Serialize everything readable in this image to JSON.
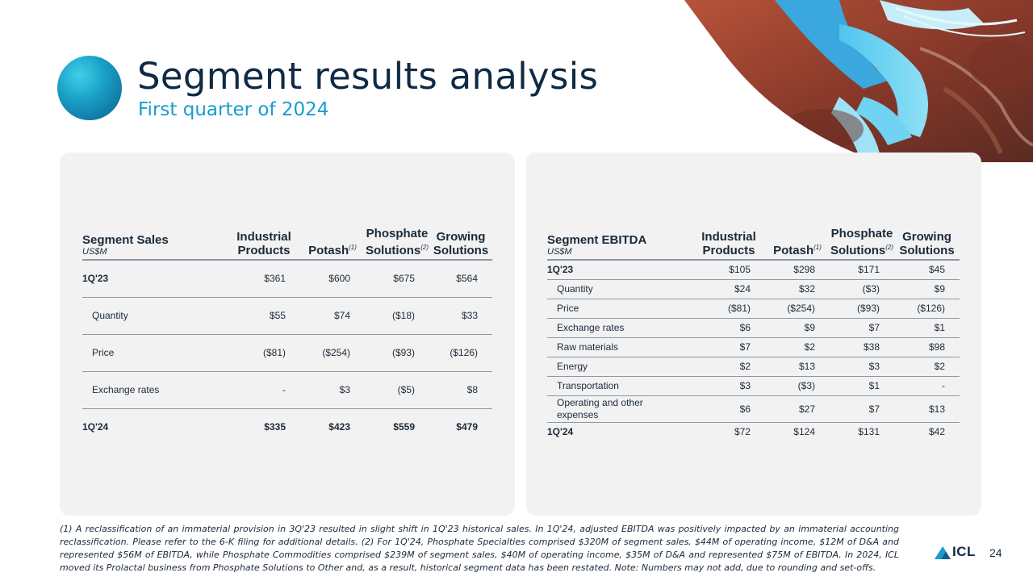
{
  "header": {
    "title": "Segment results analysis",
    "subtitle": "First quarter of 2024"
  },
  "sales_table": {
    "title": "Segment Sales",
    "unit": "US$M",
    "col1": "Industrial Products",
    "col2": "Potash",
    "col2_note": "(1)",
    "col3": "Phosphate Solutions",
    "col3_note": "(2)",
    "col4": "Growing Solutions",
    "rows": [
      {
        "label": "1Q'23",
        "v": [
          "$361",
          "$600",
          "$675",
          "$564"
        ]
      },
      {
        "label": "Quantity",
        "v": [
          "$55",
          "$74",
          "($18)",
          "$33"
        ]
      },
      {
        "label": "Price",
        "v": [
          "($81)",
          "($254)",
          "($93)",
          "($126)"
        ]
      },
      {
        "label": "Exchange rates",
        "v": [
          "-",
          "$3",
          "($5)",
          "$8"
        ]
      },
      {
        "label": "1Q'24",
        "v": [
          "$335",
          "$423",
          "$559",
          "$479"
        ]
      }
    ]
  },
  "ebitda_table": {
    "title": "Segment EBITDA",
    "unit": "US$M",
    "col1": "Industrial Products",
    "col2": "Potash",
    "col2_note": "(1)",
    "col3": "Phosphate Solutions",
    "col3_note": "(2)",
    "col4": "Growing Solutions",
    "rows": [
      {
        "label": "1Q'23",
        "v": [
          "$105",
          "$298",
          "$171",
          "$45"
        ]
      },
      {
        "label": "Quantity",
        "v": [
          "$24",
          "$32",
          "($3)",
          "$9"
        ]
      },
      {
        "label": "Price",
        "v": [
          "($81)",
          "($254)",
          "($93)",
          "($126)"
        ]
      },
      {
        "label": "Exchange rates",
        "v": [
          "$6",
          "$9",
          "$7",
          "$1"
        ]
      },
      {
        "label": "Raw materials",
        "v": [
          "$7",
          "$2",
          "$38",
          "$98"
        ]
      },
      {
        "label": "Energy",
        "v": [
          "$2",
          "$13",
          "$3",
          "$2"
        ]
      },
      {
        "label": "Transportation",
        "v": [
          "$3",
          "($3)",
          "$1",
          "-"
        ]
      },
      {
        "label": "Operating and other expenses",
        "v": [
          "$6",
          "$27",
          "$7",
          "$13"
        ]
      },
      {
        "label": "1Q'24",
        "v": [
          "$72",
          "$124",
          "$131",
          "$42"
        ]
      }
    ]
  },
  "footnote": "(1) A reclassification of an immaterial provision in 3Q'23 resulted in slight shift in 1Q'23 historical sales. In 1Q'24, adjusted EBITDA was positively impacted by an immaterial accounting reclassification. Please refer to the 6-K filing for additional details. (2) For 1Q'24, Phosphate Specialties comprised $320M of segment sales, $44M of operating income, $12M of D&A and represented $56M of EBITDA, while Phosphate Commodities comprised $239M of segment sales, $40M of operating income, $35M of D&A and represented $75M of EBITDA. In 2024, ICL moved its Prolactal business from Phosphate Solutions to Other and, as a result, historical segment data has been restated. Note: Numbers may not add, due to rounding and set-offs.",
  "brand": "ICL",
  "page_number": "24",
  "colors": {
    "title": "#0f2a44",
    "subtitle": "#1a9bd0",
    "panel": "#f2f2f2"
  }
}
